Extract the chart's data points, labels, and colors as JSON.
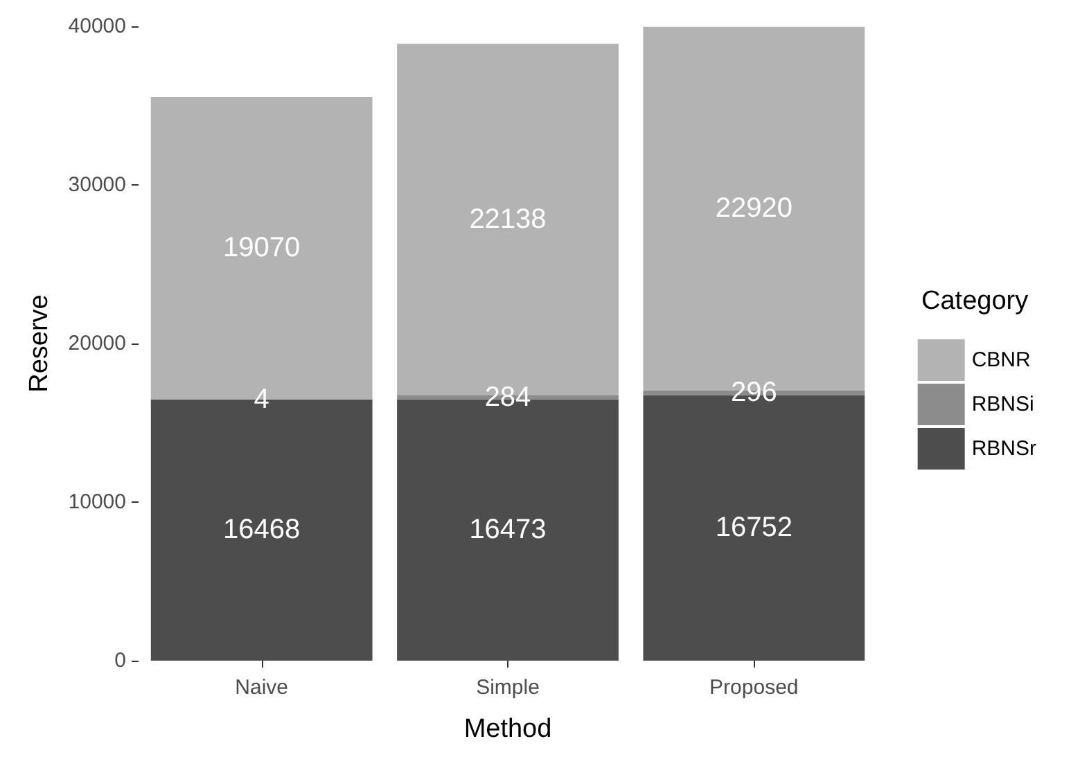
{
  "chart_data": {
    "type": "bar",
    "stacked": true,
    "xlabel": "Method",
    "ylabel": "Reserve",
    "legend_title": "Category",
    "categories": [
      "Naive",
      "Simple",
      "Proposed"
    ],
    "series": [
      {
        "name": "RBNSr",
        "color": "#4d4d4d",
        "values": [
          16468,
          16473,
          16752
        ]
      },
      {
        "name": "RBNSi",
        "color": "#8c8c8c",
        "values": [
          4,
          284,
          296
        ]
      },
      {
        "name": "CBNR",
        "color": "#b3b3b3",
        "values": [
          19070,
          22138,
          22920
        ]
      }
    ],
    "ylim": [
      0,
      40000
    ],
    "yticks": [
      0,
      10000,
      20000,
      30000,
      40000
    ],
    "data_labels": true,
    "grid": false,
    "legend": "right"
  }
}
